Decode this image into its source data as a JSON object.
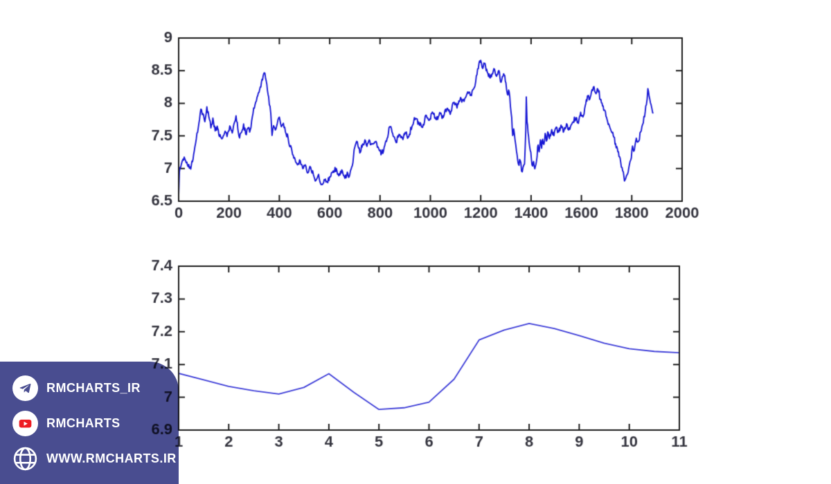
{
  "figure": {
    "background": "#ffffff",
    "axis_color": "#1c1c1c",
    "label_color": "#35353f"
  },
  "chart_data": [
    {
      "type": "line",
      "title": "",
      "xlabel": "",
      "ylabel": "",
      "xlim": [
        0,
        2000
      ],
      "ylim": [
        6.5,
        9
      ],
      "grid": false,
      "box": true,
      "xticks": [
        0,
        200,
        400,
        600,
        800,
        1000,
        1200,
        1400,
        1600,
        1800,
        2000
      ],
      "xtick_labels": [
        "0",
        "200",
        "400",
        "600",
        "800",
        "1000",
        "1200",
        "1400",
        "1600",
        "1800",
        "2000"
      ],
      "yticks": [
        6.5,
        7,
        7.5,
        8,
        8.5,
        9
      ],
      "ytick_labels": [
        "6.5",
        "7",
        "7.5",
        "8",
        "8.5",
        "9"
      ],
      "noise": {
        "amplitude": 0.045,
        "step": 2.5,
        "seed": 11
      },
      "series": [
        {
          "color": "#1717d4",
          "width": 1.9,
          "points": [
            [
              0,
              6.58
            ],
            [
              3,
              6.95
            ],
            [
              8,
              7.02
            ],
            [
              15,
              7.12
            ],
            [
              22,
              7.18
            ],
            [
              30,
              7.08
            ],
            [
              40,
              7.05
            ],
            [
              48,
              6.99
            ],
            [
              55,
              7.12
            ],
            [
              62,
              7.27
            ],
            [
              70,
              7.45
            ],
            [
              78,
              7.62
            ],
            [
              88,
              7.92
            ],
            [
              96,
              7.83
            ],
            [
              104,
              7.72
            ],
            [
              112,
              7.95
            ],
            [
              120,
              7.8
            ],
            [
              128,
              7.62
            ],
            [
              136,
              7.76
            ],
            [
              145,
              7.58
            ],
            [
              153,
              7.65
            ],
            [
              162,
              7.5
            ],
            [
              172,
              7.45
            ],
            [
              182,
              7.55
            ],
            [
              192,
              7.5
            ],
            [
              203,
              7.66
            ],
            [
              213,
              7.55
            ],
            [
              222,
              7.72
            ],
            [
              228,
              7.8
            ],
            [
              235,
              7.62
            ],
            [
              242,
              7.48
            ],
            [
              250,
              7.55
            ],
            [
              258,
              7.68
            ],
            [
              266,
              7.52
            ],
            [
              274,
              7.62
            ],
            [
              282,
              7.56
            ],
            [
              290,
              7.72
            ],
            [
              298,
              7.92
            ],
            [
              306,
              8.02
            ],
            [
              314,
              8.12
            ],
            [
              322,
              8.22
            ],
            [
              331,
              8.36
            ],
            [
              340,
              8.47
            ],
            [
              348,
              8.35
            ],
            [
              355,
              8.15
            ],
            [
              360,
              7.98
            ],
            [
              366,
              7.85
            ],
            [
              371,
              7.52
            ],
            [
              377,
              7.65
            ],
            [
              384,
              7.6
            ],
            [
              392,
              7.7
            ],
            [
              400,
              7.78
            ],
            [
              408,
              7.64
            ],
            [
              416,
              7.7
            ],
            [
              424,
              7.56
            ],
            [
              432,
              7.52
            ],
            [
              440,
              7.36
            ],
            [
              450,
              7.28
            ],
            [
              460,
              7.16
            ],
            [
              472,
              7.07
            ],
            [
              483,
              7.13
            ],
            [
              493,
              7.0
            ],
            [
              503,
              7.06
            ],
            [
              513,
              6.93
            ],
            [
              524,
              7.03
            ],
            [
              535,
              6.9
            ],
            [
              545,
              6.83
            ],
            [
              556,
              6.9
            ],
            [
              566,
              6.76
            ],
            [
              578,
              6.83
            ],
            [
              590,
              6.79
            ],
            [
              602,
              6.88
            ],
            [
              614,
              6.96
            ],
            [
              626,
              6.99
            ],
            [
              636,
              6.89
            ],
            [
              648,
              6.97
            ],
            [
              660,
              6.86
            ],
            [
              670,
              6.94
            ],
            [
              680,
              6.9
            ],
            [
              690,
              7.05
            ],
            [
              697,
              7.28
            ],
            [
              707,
              7.42
            ],
            [
              715,
              7.32
            ],
            [
              722,
              7.25
            ],
            [
              731,
              7.38
            ],
            [
              740,
              7.43
            ],
            [
              748,
              7.35
            ],
            [
              757,
              7.44
            ],
            [
              764,
              7.36
            ],
            [
              772,
              7.38
            ],
            [
              784,
              7.41
            ],
            [
              797,
              7.29
            ],
            [
              806,
              7.23
            ],
            [
              814,
              7.28
            ],
            [
              821,
              7.39
            ],
            [
              828,
              7.46
            ],
            [
              838,
              7.64
            ],
            [
              850,
              7.55
            ],
            [
              864,
              7.39
            ],
            [
              878,
              7.53
            ],
            [
              891,
              7.44
            ],
            [
              900,
              7.56
            ],
            [
              914,
              7.48
            ],
            [
              927,
              7.65
            ],
            [
              941,
              7.77
            ],
            [
              955,
              7.69
            ],
            [
              969,
              7.63
            ],
            [
              982,
              7.83
            ],
            [
              996,
              7.75
            ],
            [
              1010,
              7.86
            ],
            [
              1024,
              7.76
            ],
            [
              1037,
              7.85
            ],
            [
              1051,
              7.78
            ],
            [
              1065,
              7.92
            ],
            [
              1079,
              7.84
            ],
            [
              1092,
              8.02
            ],
            [
              1106,
              7.94
            ],
            [
              1120,
              8.08
            ],
            [
              1134,
              8.02
            ],
            [
              1148,
              8.17
            ],
            [
              1161,
              8.12
            ],
            [
              1175,
              8.24
            ],
            [
              1185,
              8.44
            ],
            [
              1193,
              8.6
            ],
            [
              1200,
              8.67
            ],
            [
              1208,
              8.54
            ],
            [
              1217,
              8.6
            ],
            [
              1226,
              8.48
            ],
            [
              1238,
              8.39
            ],
            [
              1252,
              8.54
            ],
            [
              1263,
              8.42
            ],
            [
              1272,
              8.49
            ],
            [
              1281,
              8.33
            ],
            [
              1291,
              8.45
            ],
            [
              1300,
              8.31
            ],
            [
              1306,
              8.13
            ],
            [
              1313,
              8.18
            ],
            [
              1318,
              7.96
            ],
            [
              1323,
              7.78
            ],
            [
              1327,
              7.5
            ],
            [
              1331,
              7.62
            ],
            [
              1336,
              7.46
            ],
            [
              1342,
              7.28
            ],
            [
              1347,
              7.12
            ],
            [
              1352,
              7.06
            ],
            [
              1357,
              7.13
            ],
            [
              1362,
              6.95
            ],
            [
              1368,
              7.02
            ],
            [
              1374,
              7.08
            ],
            [
              1379,
              7.6
            ],
            [
              1381,
              8.1
            ],
            [
              1384,
              7.72
            ],
            [
              1388,
              7.55
            ],
            [
              1392,
              7.4
            ],
            [
              1397,
              7.28
            ],
            [
              1401,
              7.16
            ],
            [
              1406,
              7.04
            ],
            [
              1410,
              7.12
            ],
            [
              1415,
              6.99
            ],
            [
              1419,
              7.07
            ],
            [
              1424,
              7.2
            ],
            [
              1428,
              7.36
            ],
            [
              1432,
              7.25
            ],
            [
              1437,
              7.43
            ],
            [
              1442,
              7.3
            ],
            [
              1446,
              7.46
            ],
            [
              1451,
              7.38
            ],
            [
              1456,
              7.54
            ],
            [
              1461,
              7.43
            ],
            [
              1466,
              7.55
            ],
            [
              1473,
              7.46
            ],
            [
              1482,
              7.6
            ],
            [
              1491,
              7.5
            ],
            [
              1500,
              7.64
            ],
            [
              1510,
              7.55
            ],
            [
              1519,
              7.66
            ],
            [
              1528,
              7.57
            ],
            [
              1541,
              7.68
            ],
            [
              1554,
              7.6
            ],
            [
              1565,
              7.7
            ],
            [
              1579,
              7.78
            ],
            [
              1588,
              7.7
            ],
            [
              1597,
              7.85
            ],
            [
              1606,
              7.78
            ],
            [
              1615,
              7.95
            ],
            [
              1624,
              8.12
            ],
            [
              1633,
              8.05
            ],
            [
              1642,
              8.2
            ],
            [
              1650,
              8.25
            ],
            [
              1658,
              8.16
            ],
            [
              1666,
              8.22
            ],
            [
              1675,
              8.05
            ],
            [
              1684,
              7.95
            ],
            [
              1693,
              7.88
            ],
            [
              1702,
              7.76
            ],
            [
              1711,
              7.66
            ],
            [
              1720,
              7.57
            ],
            [
              1729,
              7.47
            ],
            [
              1738,
              7.33
            ],
            [
              1747,
              7.26
            ],
            [
              1756,
              7.1
            ],
            [
              1764,
              6.95
            ],
            [
              1771,
              6.82
            ],
            [
              1779,
              6.9
            ],
            [
              1788,
              7.0
            ],
            [
              1796,
              7.12
            ],
            [
              1803,
              7.34
            ],
            [
              1810,
              7.27
            ],
            [
              1818,
              7.46
            ],
            [
              1826,
              7.41
            ],
            [
              1835,
              7.56
            ],
            [
              1843,
              7.68
            ],
            [
              1851,
              7.8
            ],
            [
              1858,
              7.98
            ],
            [
              1864,
              8.22
            ],
            [
              1869,
              8.12
            ],
            [
              1874,
              8.0
            ],
            [
              1880,
              7.92
            ],
            [
              1886,
              7.85
            ]
          ]
        }
      ]
    },
    {
      "type": "line",
      "title": "",
      "xlabel": "",
      "ylabel": "",
      "xlim": [
        1,
        11
      ],
      "ylim": [
        6.9,
        7.4
      ],
      "grid": false,
      "box": true,
      "xticks": [
        1,
        2,
        3,
        4,
        5,
        6,
        7,
        8,
        9,
        10,
        11
      ],
      "xtick_labels": [
        "1",
        "2",
        "3",
        "4",
        "5",
        "6",
        "7",
        "8",
        "9",
        "10",
        "11"
      ],
      "yticks": [
        6.9,
        7.0,
        7.1,
        7.2,
        7.3,
        7.4
      ],
      "ytick_labels": [
        "6.9",
        "7",
        "7.1",
        "7.2",
        "7.3",
        "7.4"
      ],
      "series": [
        {
          "color": "#3c3cd8",
          "width": 1.8,
          "points": [
            [
              1,
              7.073
            ],
            [
              1.5,
              7.053
            ],
            [
              2,
              7.033
            ],
            [
              2.5,
              7.02
            ],
            [
              3,
              7.01
            ],
            [
              3.5,
              7.03
            ],
            [
              4,
              7.072
            ],
            [
              4.5,
              7.015
            ],
            [
              5,
              6.963
            ],
            [
              5.5,
              6.968
            ],
            [
              6,
              6.985
            ],
            [
              6.5,
              7.055
            ],
            [
              7,
              7.175
            ],
            [
              7.5,
              7.205
            ],
            [
              8,
              7.225
            ],
            [
              8.5,
              7.21
            ],
            [
              9,
              7.188
            ],
            [
              9.5,
              7.165
            ],
            [
              10,
              7.148
            ],
            [
              10.5,
              7.14
            ],
            [
              11,
              7.136
            ]
          ]
        }
      ]
    }
  ],
  "watermark": {
    "background": "#494d90",
    "youtube_red": "#ee1d24",
    "items": [
      {
        "icon": "telegram-icon",
        "label": "RMCHARTS_IR"
      },
      {
        "icon": "youtube-icon",
        "label": "RMCHARTS"
      },
      {
        "icon": "globe-icon",
        "label": "WWW.RMCHARTS.IR"
      }
    ]
  }
}
